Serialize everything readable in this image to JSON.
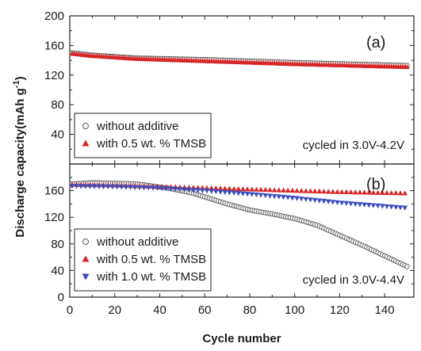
{
  "chart_data": [
    {
      "type": "scatter",
      "panel_label": "(a)",
      "condition": "cycled in 3.0V-4.2V",
      "xlim": [
        0,
        153
      ],
      "ylim": [
        0,
        200
      ],
      "grid": false,
      "legend_position": "bottom-left",
      "series": [
        {
          "name": "without additive",
          "marker": "circle-open",
          "color": "#555555",
          "x": [
            1,
            150
          ],
          "y": [
            150,
            133
          ],
          "knots": [
            [
              1,
              150
            ],
            [
              10,
              147
            ],
            [
              30,
              143
            ],
            [
              60,
              141
            ],
            [
              100,
              137
            ],
            [
              150,
              133
            ]
          ]
        },
        {
          "name": "with 0.5 wt. % TMSB",
          "marker": "triangle-up",
          "color": "#d62728",
          "x": [
            1,
            150
          ],
          "y": [
            149,
            131
          ],
          "knots": [
            [
              1,
              149
            ],
            [
              10,
              146
            ],
            [
              30,
              142
            ],
            [
              60,
              139
            ],
            [
              100,
              135
            ],
            [
              150,
              131
            ]
          ]
        }
      ]
    },
    {
      "type": "scatter",
      "panel_label": "(b)",
      "condition": "cycled in 3.0V-4.4V",
      "xlim": [
        0,
        153
      ],
      "ylim": [
        0,
        200
      ],
      "grid": false,
      "legend_position": "bottom-left",
      "series": [
        {
          "name": "without additive",
          "marker": "circle-open",
          "color": "#555555",
          "knots": [
            [
              1,
              170
            ],
            [
              10,
              172
            ],
            [
              30,
              170
            ],
            [
              45,
              163
            ],
            [
              55,
              156
            ],
            [
              70,
              140
            ],
            [
              80,
              131
            ],
            [
              90,
              125
            ],
            [
              100,
              118
            ],
            [
              110,
              108
            ],
            [
              120,
              93
            ],
            [
              130,
              78
            ],
            [
              140,
              62
            ],
            [
              150,
              46
            ]
          ]
        },
        {
          "name": "with 0.5 wt. % TMSB",
          "marker": "triangle-up",
          "color": "#d62728",
          "knots": [
            [
              1,
              169
            ],
            [
              20,
              168
            ],
            [
              40,
              166
            ],
            [
              60,
              164
            ],
            [
              80,
              162
            ],
            [
              100,
              160
            ],
            [
              120,
              158
            ],
            [
              150,
              156
            ]
          ]
        },
        {
          "name": "with 1.0 wt. % TMSB",
          "marker": "triangle-down",
          "color": "#3b4cc0",
          "knots": [
            [
              1,
              167
            ],
            [
              20,
              166
            ],
            [
              40,
              164
            ],
            [
              60,
              160
            ],
            [
              80,
              155
            ],
            [
              100,
              149
            ],
            [
              120,
              142
            ],
            [
              150,
              134
            ]
          ]
        }
      ]
    }
  ],
  "axes": {
    "xlabel": "Cycle number",
    "ylabel": "Discharge capacity(mAh g",
    "ylabel_sup": "-1",
    "ylabel_tail": ")",
    "xticks": [
      0,
      20,
      40,
      60,
      80,
      100,
      120,
      140
    ],
    "yticks_top": [
      40,
      80,
      120,
      160,
      200
    ],
    "yticks_bottom": [
      0,
      40,
      80,
      120,
      160
    ]
  }
}
